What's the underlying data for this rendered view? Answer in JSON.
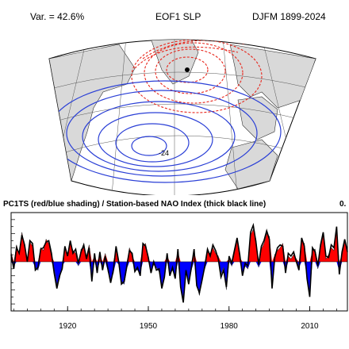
{
  "header": {
    "variance_label": "Var. = 42.6%",
    "map_title": "EOF1 SLP",
    "season_label": "DJFM 1899-2024"
  },
  "map": {
    "contour_label": "-24",
    "positive_color": "#e8261c",
    "negative_color": "#2a3fd6",
    "land_color": "#d9d9d9"
  },
  "timeseries": {
    "title": "PC1TS (red/blue shading) / Station-based NAO Index (thick black line)",
    "corner_label": "0.",
    "positive_color": "#ff0000",
    "negative_color": "#0000ff"
  },
  "chart_data": {
    "type": "area",
    "title": "PC1TS (red/blue shading) / Station-based NAO Index (thick black line)",
    "x_ticks": [
      1920,
      1950,
      1980,
      2010
    ],
    "xlim": [
      1899,
      2024
    ],
    "ylim": [
      -3.5,
      3.5
    ],
    "x": [
      1899,
      1900,
      1901,
      1902,
      1903,
      1904,
      1905,
      1906,
      1907,
      1908,
      1909,
      1910,
      1911,
      1912,
      1913,
      1914,
      1915,
      1916,
      1917,
      1918,
      1919,
      1920,
      1921,
      1922,
      1923,
      1924,
      1925,
      1926,
      1927,
      1928,
      1929,
      1930,
      1931,
      1932,
      1933,
      1934,
      1935,
      1936,
      1937,
      1938,
      1939,
      1940,
      1941,
      1942,
      1943,
      1944,
      1945,
      1946,
      1947,
      1948,
      1949,
      1950,
      1951,
      1952,
      1953,
      1954,
      1955,
      1956,
      1957,
      1958,
      1959,
      1960,
      1961,
      1962,
      1963,
      1964,
      1965,
      1966,
      1967,
      1968,
      1969,
      1970,
      1971,
      1972,
      1973,
      1974,
      1975,
      1976,
      1977,
      1978,
      1979,
      1980,
      1981,
      1982,
      1983,
      1984,
      1985,
      1986,
      1987,
      1988,
      1989,
      1990,
      1991,
      1992,
      1993,
      1994,
      1995,
      1996,
      1997,
      1998,
      1999,
      2000,
      2001,
      2002,
      2003,
      2004,
      2005,
      2006,
      2007,
      2008,
      2009,
      2010,
      2011,
      2012,
      2013,
      2014,
      2015,
      2016,
      2017,
      2018,
      2019,
      2020,
      2021,
      2022,
      2023,
      2024
    ],
    "series": [
      {
        "name": "PC1TS",
        "values": [
          0.7,
          -0.3,
          1.2,
          0.5,
          2.1,
          1.0,
          0.2,
          1.4,
          1.1,
          -0.4,
          -0.6,
          1.0,
          0.8,
          1.6,
          1.3,
          0.4,
          -0.5,
          -1.6,
          -1.2,
          -0.3,
          0.9,
          0.6,
          1.3,
          0.8,
          0.6,
          -0.3,
          0.9,
          1.0,
          0.4,
          1.2,
          -1.2,
          0.4,
          -0.6,
          0.5,
          -0.4,
          0.6,
          -0.7,
          -1.3,
          -0.8,
          0.9,
          -0.2,
          -1.4,
          -1.6,
          -0.5,
          1.0,
          0.4,
          -0.5,
          -0.6,
          -0.8,
          1.1,
          1.3,
          0.1,
          -0.6,
          -0.2,
          -0.4,
          -0.7,
          -1.7,
          -0.9,
          0.4,
          -0.8,
          -0.6,
          -1.0,
          0.7,
          -1.6,
          -2.6,
          -0.8,
          -1.4,
          -0.6,
          0.7,
          -1.5,
          -2.4,
          -1.1,
          -0.5,
          0.7,
          0.6,
          1.0,
          0.6,
          0.4,
          -0.9,
          -0.4,
          -2.0,
          0.2,
          -0.3,
          0.6,
          1.5,
          0.3,
          -0.8,
          -0.3,
          -0.5,
          1.9,
          2.3,
          1.6,
          -0.4,
          0.9,
          1.3,
          2.0,
          1.8,
          -1.7,
          0.5,
          0.8,
          1.0,
          1.3,
          -0.6,
          0.4,
          0.2,
          0.5,
          0.2,
          -0.4,
          1.5,
          1.3,
          -1.0,
          -2.3,
          0.8,
          0.9,
          -0.5,
          1.0,
          1.9,
          0.2,
          0.5,
          1.0,
          0.8,
          2.3,
          -0.7,
          0.5,
          1.4,
          0.9
        ]
      },
      {
        "name": "Station-based NAO Index",
        "values": [
          0.5,
          -0.5,
          1.0,
          0.6,
          1.9,
          1.2,
          0.0,
          1.5,
          1.3,
          -0.6,
          -0.4,
          0.9,
          1.0,
          1.4,
          1.5,
          0.6,
          -0.8,
          -1.9,
          -1.0,
          -0.5,
          1.1,
          0.4,
          1.5,
          0.6,
          0.9,
          -0.1,
          0.7,
          1.2,
          0.2,
          1.0,
          -1.4,
          0.6,
          -0.8,
          0.7,
          -0.6,
          0.4,
          -0.5,
          -1.5,
          -0.6,
          1.1,
          0.0,
          -1.6,
          -1.4,
          -0.3,
          0.8,
          0.6,
          -0.7,
          -0.4,
          -1.0,
          1.3,
          1.1,
          0.3,
          -0.8,
          0.0,
          -0.6,
          -0.5,
          -1.9,
          -1.1,
          0.6,
          -1.0,
          -0.4,
          -1.2,
          0.9,
          -1.8,
          -2.9,
          -0.6,
          -1.6,
          -0.4,
          0.9,
          -1.7,
          -2.2,
          -1.3,
          -0.3,
          0.9,
          0.4,
          1.2,
          0.8,
          0.2,
          -1.1,
          -0.6,
          -1.8,
          0.4,
          -0.1,
          0.8,
          1.7,
          0.5,
          -1.0,
          -0.1,
          -0.3,
          2.1,
          2.6,
          1.4,
          -0.2,
          1.1,
          1.5,
          2.2,
          1.6,
          -1.9,
          0.3,
          1.0,
          1.2,
          1.1,
          -0.8,
          0.6,
          0.4,
          0.7,
          0.0,
          -0.6,
          1.7,
          1.1,
          -1.2,
          -2.5,
          1.0,
          0.7,
          -0.3,
          1.2,
          2.1,
          0.4,
          0.3,
          1.2,
          1.0,
          2.5,
          -0.9,
          0.7,
          1.6,
          0.7
        ]
      }
    ]
  }
}
